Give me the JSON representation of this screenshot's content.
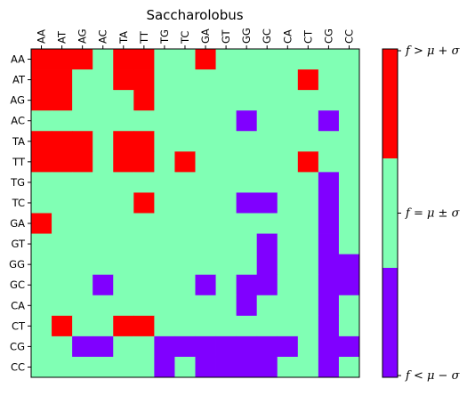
{
  "chart_data": {
    "type": "heatmap",
    "title": "Saccharolobus",
    "x_labels": [
      "AA",
      "AT",
      "AG",
      "AC",
      "TA",
      "TT",
      "TG",
      "TC",
      "GA",
      "GT",
      "GG",
      "GC",
      "CA",
      "CT",
      "CG",
      "CC"
    ],
    "y_labels": [
      "AA",
      "AT",
      "AG",
      "AC",
      "TA",
      "TT",
      "TG",
      "TC",
      "GA",
      "GT",
      "GG",
      "GC",
      "CA",
      "CT",
      "CG",
      "CC"
    ],
    "categories": {
      "high": "f > μ + σ",
      "mid": "f = μ ± σ",
      "low": "f < μ − σ"
    },
    "colors": {
      "high": "#ff0000",
      "mid": "#80ffb4",
      "low": "#8000ff"
    },
    "grid": false,
    "legend": "colorbar-right",
    "values": [
      [
        1,
        1,
        1,
        0,
        1,
        1,
        0,
        0,
        1,
        0,
        0,
        0,
        0,
        0,
        0,
        0
      ],
      [
        1,
        1,
        0,
        0,
        1,
        1,
        0,
        0,
        0,
        0,
        0,
        0,
        0,
        1,
        0,
        0
      ],
      [
        1,
        1,
        0,
        0,
        0,
        1,
        0,
        0,
        0,
        0,
        0,
        0,
        0,
        0,
        0,
        0
      ],
      [
        0,
        0,
        0,
        0,
        0,
        0,
        0,
        0,
        0,
        0,
        -1,
        0,
        0,
        0,
        -1,
        0
      ],
      [
        1,
        1,
        1,
        0,
        1,
        1,
        0,
        0,
        0,
        0,
        0,
        0,
        0,
        0,
        0,
        0
      ],
      [
        1,
        1,
        1,
        0,
        1,
        1,
        0,
        1,
        0,
        0,
        0,
        0,
        0,
        1,
        0,
        0
      ],
      [
        0,
        0,
        0,
        0,
        0,
        0,
        0,
        0,
        0,
        0,
        0,
        0,
        0,
        0,
        -1,
        0
      ],
      [
        0,
        0,
        0,
        0,
        0,
        1,
        0,
        0,
        0,
        0,
        -1,
        -1,
        0,
        0,
        -1,
        0
      ],
      [
        1,
        0,
        0,
        0,
        0,
        0,
        0,
        0,
        0,
        0,
        0,
        0,
        0,
        0,
        -1,
        0
      ],
      [
        0,
        0,
        0,
        0,
        0,
        0,
        0,
        0,
        0,
        0,
        0,
        -1,
        0,
        0,
        -1,
        0
      ],
      [
        0,
        0,
        0,
        0,
        0,
        0,
        0,
        0,
        0,
        0,
        0,
        -1,
        0,
        0,
        -1,
        -1
      ],
      [
        0,
        0,
        0,
        -1,
        0,
        0,
        0,
        0,
        -1,
        0,
        -1,
        -1,
        0,
        0,
        -1,
        -1
      ],
      [
        0,
        0,
        0,
        0,
        0,
        0,
        0,
        0,
        0,
        0,
        -1,
        0,
        0,
        0,
        -1,
        0
      ],
      [
        0,
        1,
        0,
        0,
        1,
        1,
        0,
        0,
        0,
        0,
        0,
        0,
        0,
        0,
        -1,
        0
      ],
      [
        0,
        0,
        -1,
        -1,
        0,
        0,
        -1,
        -1,
        -1,
        -1,
        -1,
        -1,
        -1,
        0,
        -1,
        -1
      ],
      [
        0,
        0,
        0,
        0,
        0,
        0,
        -1,
        0,
        -1,
        -1,
        -1,
        -1,
        0,
        0,
        -1,
        0
      ]
    ]
  }
}
